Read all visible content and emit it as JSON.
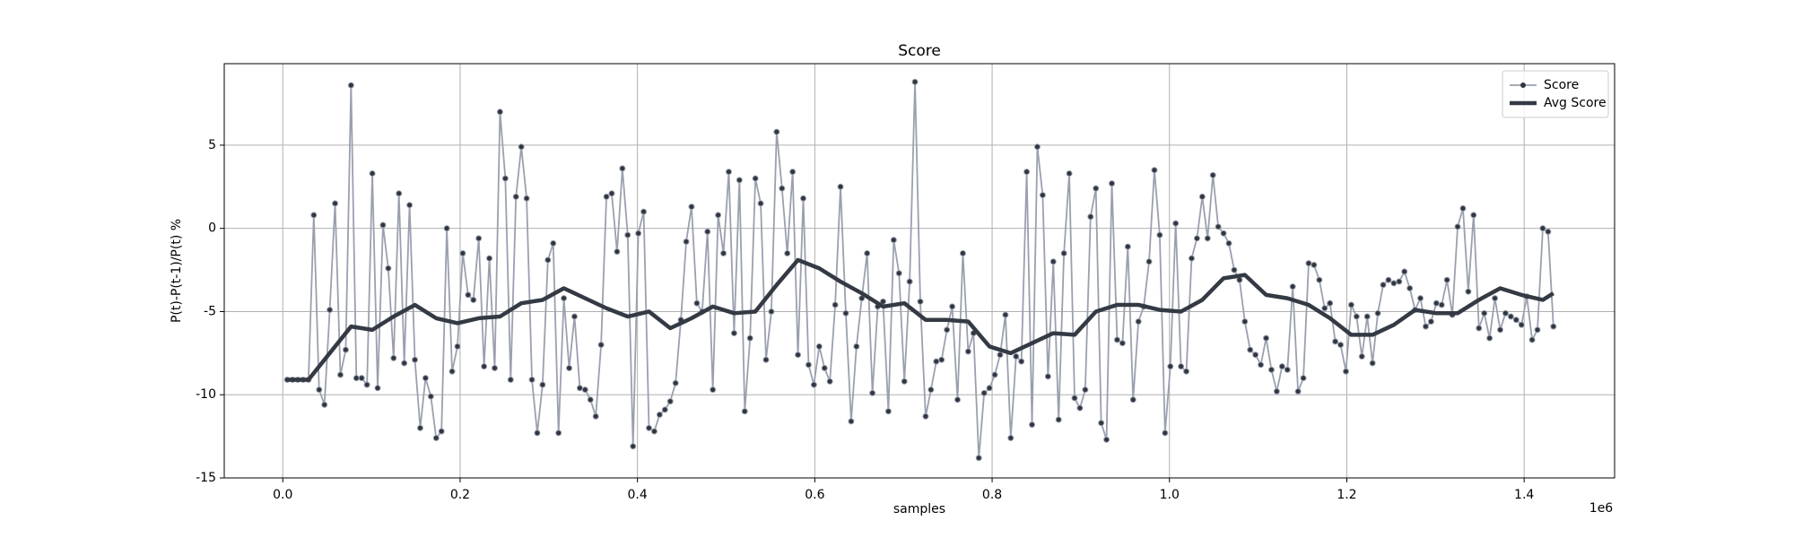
{
  "chart_data": {
    "type": "line",
    "title": "Score",
    "x_label": "samples",
    "y_label": "P(t)-P(t-1)/P(t) %",
    "x_offset_label": "1e6",
    "xlim": [
      -66000,
      1502000
    ],
    "ylim": [
      -15,
      9.9
    ],
    "xticks": [
      {
        "value": 0,
        "label": "0.0"
      },
      {
        "value": 200000,
        "label": "0.2"
      },
      {
        "value": 400000,
        "label": "0.4"
      },
      {
        "value": 600000,
        "label": "0.6"
      },
      {
        "value": 800000,
        "label": "0.8"
      },
      {
        "value": 1000000,
        "label": "1.0"
      },
      {
        "value": 1200000,
        "label": "1.2"
      },
      {
        "value": 1400000,
        "label": "1.4"
      }
    ],
    "yticks": [
      -15,
      -10,
      -5,
      0,
      5
    ],
    "grid": true,
    "legend": "upper right",
    "series": [
      {
        "name": "Score",
        "color": "#9aa0ae",
        "marker_color": "#2f3640",
        "marker": true,
        "x": [
          5000,
          11000,
          17000,
          23000,
          29000,
          35000,
          41000,
          47000,
          53000,
          59000,
          65000,
          71000,
          77000,
          83000,
          89000,
          95000,
          101000,
          107000,
          113000,
          119000,
          125000,
          131000,
          137000,
          143000,
          149000,
          155000,
          161000,
          167000,
          173000,
          179000,
          185000,
          191000,
          197000,
          203000,
          209000,
          215000,
          221000,
          227000,
          233000,
          239000,
          245000,
          251000,
          257000,
          263000,
          269000,
          275000,
          281000,
          287000,
          293000,
          299000,
          305000,
          311000,
          317000,
          323000,
          329000,
          335000,
          341000,
          347000,
          353000,
          359000,
          365000,
          371000,
          377000,
          383000,
          389000,
          395000,
          401000,
          407000,
          413000,
          419000,
          425000,
          431000,
          437000,
          443000,
          449000,
          455000,
          461000,
          467000,
          473000,
          479000,
          485000,
          491000,
          497000,
          503000,
          509000,
          515000,
          521000,
          527000,
          533000,
          539000,
          545000,
          551000,
          557000,
          563000,
          569000,
          575000,
          581000,
          587000,
          593000,
          599000,
          605000,
          611000,
          617000,
          623000,
          629000,
          635000,
          641000,
          647000,
          653000,
          659000,
          665000,
          671000,
          677000,
          683000,
          689000,
          695000,
          701000,
          707000,
          713000,
          719000,
          725000,
          731000,
          737000,
          743000,
          749000,
          755000,
          761000,
          767000,
          773000,
          779000,
          785000,
          791000,
          797000,
          803000,
          809000,
          815000,
          821000,
          827000,
          833000,
          839000,
          845000,
          851000,
          857000,
          863000,
          869000,
          875000,
          881000,
          887000,
          893000,
          899000,
          905000,
          911000,
          917000,
          923000,
          929000,
          935000,
          941000,
          947000,
          953000,
          959000,
          965000,
          971000,
          977000,
          983000,
          989000,
          995000,
          1001000,
          1007000,
          1013000,
          1019000,
          1025000,
          1031000,
          1037000,
          1043000,
          1049000,
          1055000,
          1061000,
          1067000,
          1073000,
          1079000,
          1085000,
          1091000,
          1097000,
          1103000,
          1109000,
          1115000,
          1121000,
          1127000,
          1133000,
          1139000,
          1145000,
          1151000,
          1157000,
          1163000,
          1169000,
          1175000,
          1181000,
          1187000,
          1193000,
          1199000,
          1205000,
          1211000,
          1217000,
          1223000,
          1229000,
          1235000,
          1241000,
          1247000,
          1253000,
          1259000,
          1265000,
          1271000,
          1277000,
          1283000,
          1289000,
          1295000,
          1301000,
          1307000,
          1313000,
          1319000,
          1325000,
          1331000,
          1337000,
          1343000,
          1349000,
          1355000,
          1361000,
          1367000,
          1373000,
          1379000,
          1385000,
          1391000,
          1397000,
          1403000,
          1409000,
          1415000,
          1421000,
          1427000,
          1433000
        ],
        "values": [
          -9.1,
          -9.1,
          -9.1,
          -9.1,
          -9.1,
          0.8,
          -9.7,
          -10.6,
          -4.9,
          1.5,
          -8.8,
          -7.3,
          8.6,
          -9.0,
          -9.0,
          -9.4,
          3.3,
          -9.6,
          0.2,
          -2.4,
          -7.8,
          2.1,
          -8.1,
          1.4,
          -7.9,
          -12.0,
          -9.0,
          -10.1,
          -12.6,
          -12.2,
          0.0,
          -8.6,
          -7.1,
          -1.5,
          -4.0,
          -4.3,
          -0.6,
          -8.3,
          -1.8,
          -8.4,
          7.0,
          3.0,
          -9.1,
          1.9,
          4.9,
          1.8,
          -9.1,
          -12.3,
          -9.4,
          -1.9,
          -0.9,
          -12.3,
          -4.2,
          -8.4,
          -5.3,
          -9.6,
          -9.7,
          -10.3,
          -11.3,
          -7.0,
          1.9,
          2.1,
          -1.4,
          3.6,
          -0.4,
          -13.1,
          -0.3,
          1.0,
          -12.0,
          -12.2,
          -11.2,
          -10.9,
          -10.4,
          -9.3,
          -5.5,
          -0.8,
          1.3,
          -4.5,
          -5.0,
          -0.2,
          -9.7,
          0.8,
          -1.5,
          3.4,
          -6.3,
          2.9,
          -11.0,
          -6.6,
          3.0,
          1.5,
          -7.9,
          -5.0,
          5.8,
          2.4,
          -1.5,
          3.4,
          -7.6,
          1.8,
          -8.2,
          -9.4,
          -7.1,
          -8.4,
          -9.2,
          -4.6,
          2.5,
          -5.1,
          -11.6,
          -7.1,
          -4.2,
          -1.5,
          -9.9,
          -4.7,
          -4.4,
          -11.0,
          -0.7,
          -2.7,
          -9.2,
          -3.2,
          8.8,
          -4.4,
          -11.3,
          -9.7,
          -8.0,
          -7.9,
          -6.1,
          -4.7,
          -10.3,
          -1.5,
          -7.4,
          -6.3,
          -13.8,
          -9.9,
          -9.6,
          -8.8,
          -7.6,
          -5.2,
          -12.6,
          -7.7,
          -8.0,
          3.4,
          -11.8,
          4.9,
          2.0,
          -8.9,
          -2.0,
          -11.5,
          -1.5,
          3.3,
          -10.2,
          -10.8,
          -9.7,
          0.7,
          2.4,
          -11.7,
          -12.7,
          2.7,
          -6.7,
          -6.9,
          -1.1,
          -10.3,
          -5.6,
          -4.7,
          -2.0,
          3.5,
          -0.4,
          -12.3,
          -8.3,
          0.3,
          -8.3,
          -8.6,
          -1.8,
          -0.6,
          1.9,
          -0.6,
          3.2,
          0.1,
          -0.3,
          -0.9,
          -2.5,
          -3.1,
          -5.6,
          -7.3,
          -7.6,
          -8.2,
          -6.6,
          -8.5,
          -9.8,
          -8.3,
          -8.5,
          -3.5,
          -9.8,
          -9.0,
          -2.1,
          -2.2,
          -3.1,
          -4.8,
          -4.5,
          -6.8,
          -7.0,
          -8.6,
          -4.6,
          -5.3,
          -7.7,
          -5.3,
          -8.1,
          -5.1,
          -3.4,
          -3.1,
          -3.3,
          -3.2,
          -2.6,
          -3.6,
          -4.9,
          -4.2,
          -5.9,
          -5.6,
          -4.5,
          -4.6,
          -3.1,
          -5.2,
          0.1,
          1.2,
          -3.8,
          0.8,
          -6.0,
          -5.1,
          -6.6,
          -4.2,
          -6.1,
          -5.1,
          -5.3,
          -5.5,
          -5.8,
          -4.1,
          -6.7,
          -6.1,
          0.0,
          -0.2,
          -5.9
        ]
      },
      {
        "name": "Avg Score",
        "color": "#343a44",
        "marker": false,
        "x": [
          5000,
          29000,
          53000,
          77000,
          101000,
          125000,
          149000,
          173000,
          197000,
          221000,
          245000,
          269000,
          293000,
          317000,
          341000,
          365000,
          389000,
          413000,
          437000,
          461000,
          485000,
          509000,
          533000,
          557000,
          581000,
          605000,
          629000,
          653000,
          677000,
          701000,
          725000,
          749000,
          773000,
          797000,
          821000,
          845000,
          869000,
          893000,
          917000,
          941000,
          965000,
          989000,
          1013000,
          1037000,
          1061000,
          1085000,
          1109000,
          1133000,
          1157000,
          1181000,
          1205000,
          1229000,
          1253000,
          1277000,
          1301000,
          1325000,
          1349000,
          1373000,
          1397000,
          1421000,
          1433000
        ],
        "values": [
          -9.1,
          -9.1,
          -7.5,
          -5.9,
          -6.1,
          -5.3,
          -4.6,
          -5.4,
          -5.7,
          -5.4,
          -5.3,
          -4.5,
          -4.3,
          -3.6,
          -4.2,
          -4.8,
          -5.3,
          -5.0,
          -6.0,
          -5.4,
          -4.7,
          -5.1,
          -5.0,
          -3.4,
          -1.9,
          -2.4,
          -3.2,
          -3.9,
          -4.7,
          -4.5,
          -5.5,
          -5.5,
          -5.6,
          -7.1,
          -7.5,
          -6.9,
          -6.3,
          -6.4,
          -5.0,
          -4.6,
          -4.6,
          -4.9,
          -5.0,
          -4.3,
          -3.0,
          -2.8,
          -4.0,
          -4.2,
          -4.6,
          -5.4,
          -6.4,
          -6.4,
          -5.8,
          -4.9,
          -5.1,
          -5.1,
          -4.3,
          -3.6,
          -4.0,
          -4.3,
          -3.9
        ]
      }
    ]
  }
}
